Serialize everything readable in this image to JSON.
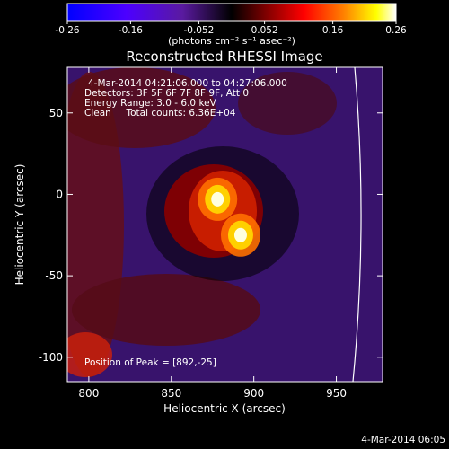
{
  "chart_data": {
    "type": "heatmap",
    "title": "Reconstructed RHESSI Image",
    "xlabel": "Heliocentric X (arcsec)",
    "ylabel": "Heliocentric Y (arcsec)",
    "xlim": [
      787,
      978
    ],
    "ylim": [
      -115,
      78
    ],
    "x_ticks": [
      800,
      850,
      900,
      950
    ],
    "y_ticks": [
      -100,
      -50,
      0,
      50
    ],
    "colorbar": {
      "unit_label": "(photons cm⁻² s⁻¹ asec⁻²)",
      "range": [
        -0.26,
        0.26
      ],
      "ticks": [
        "-0.26",
        "-0.16",
        "-0.052",
        "0.052",
        "0.16",
        "0.26"
      ],
      "colormap": [
        "#0000ff",
        "#4c00ff",
        "#5a1aa0",
        "#000000",
        "#7a0000",
        "#ff0000",
        "#ff8000",
        "#ffff00",
        "#ffffff"
      ]
    },
    "annotations": [
      "4-Mar-2014 04:21:06.000 to 04:27:06.000",
      "Detectors: 3F 5F 6F 7F 8F 9F, Att 0",
      "Energy Range: 3.0 - 6.0 keV",
      "Clean     Total counts: 6.36E+04",
      "Position of Peak = [892,-25]"
    ],
    "peak_position": [
      892,
      -25
    ],
    "sources": [
      {
        "x": 878,
        "y": -3,
        "intensity": 0.26
      },
      {
        "x": 892,
        "y": -25,
        "intensity": 0.26
      }
    ],
    "limb_color": "#ffffff",
    "timestamp": "4-Mar-2014 06:05"
  }
}
